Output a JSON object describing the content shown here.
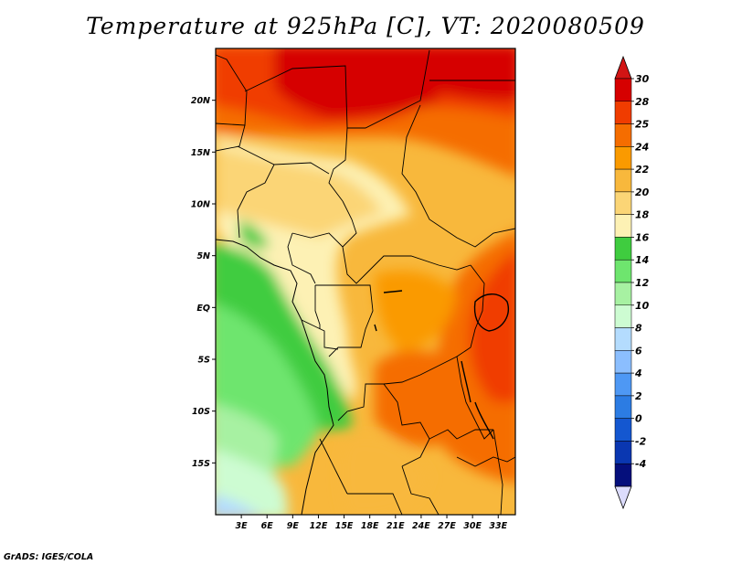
{
  "title": "Temperature at 925hPa [C], VT: 2020080509",
  "footer": "GrADS: IGES/COLA",
  "map": {
    "lat_labels": [
      "20N",
      "15N",
      "10N",
      "5N",
      "EQ",
      "5S",
      "10S",
      "15S"
    ],
    "lat_values": [
      20,
      15,
      10,
      5,
      0,
      -5,
      -10,
      -15
    ],
    "lon_labels": [
      "3E",
      "6E",
      "9E",
      "12E",
      "15E",
      "18E",
      "21E",
      "24E",
      "27E",
      "30E",
      "33E"
    ],
    "lon_values": [
      3,
      6,
      9,
      12,
      15,
      18,
      21,
      24,
      27,
      30,
      33
    ],
    "lon_range": [
      0,
      35
    ],
    "lat_range": [
      -20,
      25
    ]
  },
  "colorbar": {
    "labels": [
      "30",
      "28",
      "25",
      "24",
      "22",
      "20",
      "18",
      "16",
      "14",
      "12",
      "10",
      "8",
      "6",
      "4",
      "2",
      "0",
      "-2",
      "-4"
    ],
    "colors": [
      "#d60000",
      "#f03c00",
      "#f56d00",
      "#fa9a00",
      "#f8b83c",
      "#fbd576",
      "#fdf1b4",
      "#3fcc3f",
      "#6ee56e",
      "#a7f1a2",
      "#cdfcd2",
      "#b4dcfe",
      "#8bbefe",
      "#4e98f4",
      "#2c7ce3",
      "#1457d0",
      "#0a37b1",
      "#050f7c"
    ],
    "top_arrow_color": "#d21414",
    "bottom_arrow_color": "#dcdcfc"
  }
}
